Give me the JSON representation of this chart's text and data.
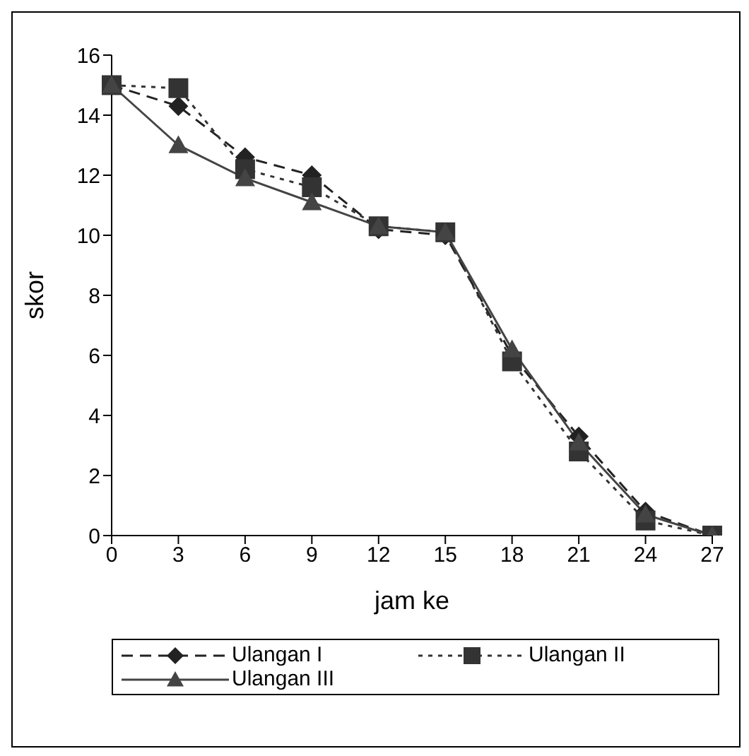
{
  "chart_data": {
    "type": "line",
    "xlabel": "jam ke",
    "ylabel": "skor",
    "categories": [
      "0",
      "3",
      "6",
      "9",
      "12",
      "15",
      "18",
      "21",
      "24",
      "27"
    ],
    "series": [
      {
        "name": "Ulangan I",
        "color": "#222222",
        "marker": "diamond",
        "line_style": "dashed",
        "values": [
          15,
          14.3,
          12.6,
          12.0,
          10.2,
          10.0,
          6.0,
          3.3,
          0.8,
          0
        ]
      },
      {
        "name": "Ulangan II",
        "color": "#333333",
        "marker": "square",
        "line_style": "dotted",
        "values": [
          15,
          14.9,
          12.2,
          11.6,
          10.3,
          10.1,
          5.8,
          2.8,
          0.5,
          0
        ]
      },
      {
        "name": "Ulangan III",
        "color": "#444444",
        "marker": "triangle",
        "line_style": "solid",
        "values": [
          15,
          13,
          11.9,
          11.1,
          10.3,
          10.1,
          6.2,
          3.1,
          0.7,
          0
        ]
      }
    ],
    "ylim": [
      0,
      16
    ],
    "yticks": [
      0,
      2,
      4,
      6,
      8,
      10,
      12,
      14,
      16
    ],
    "grid": false,
    "legend": "bottom"
  }
}
